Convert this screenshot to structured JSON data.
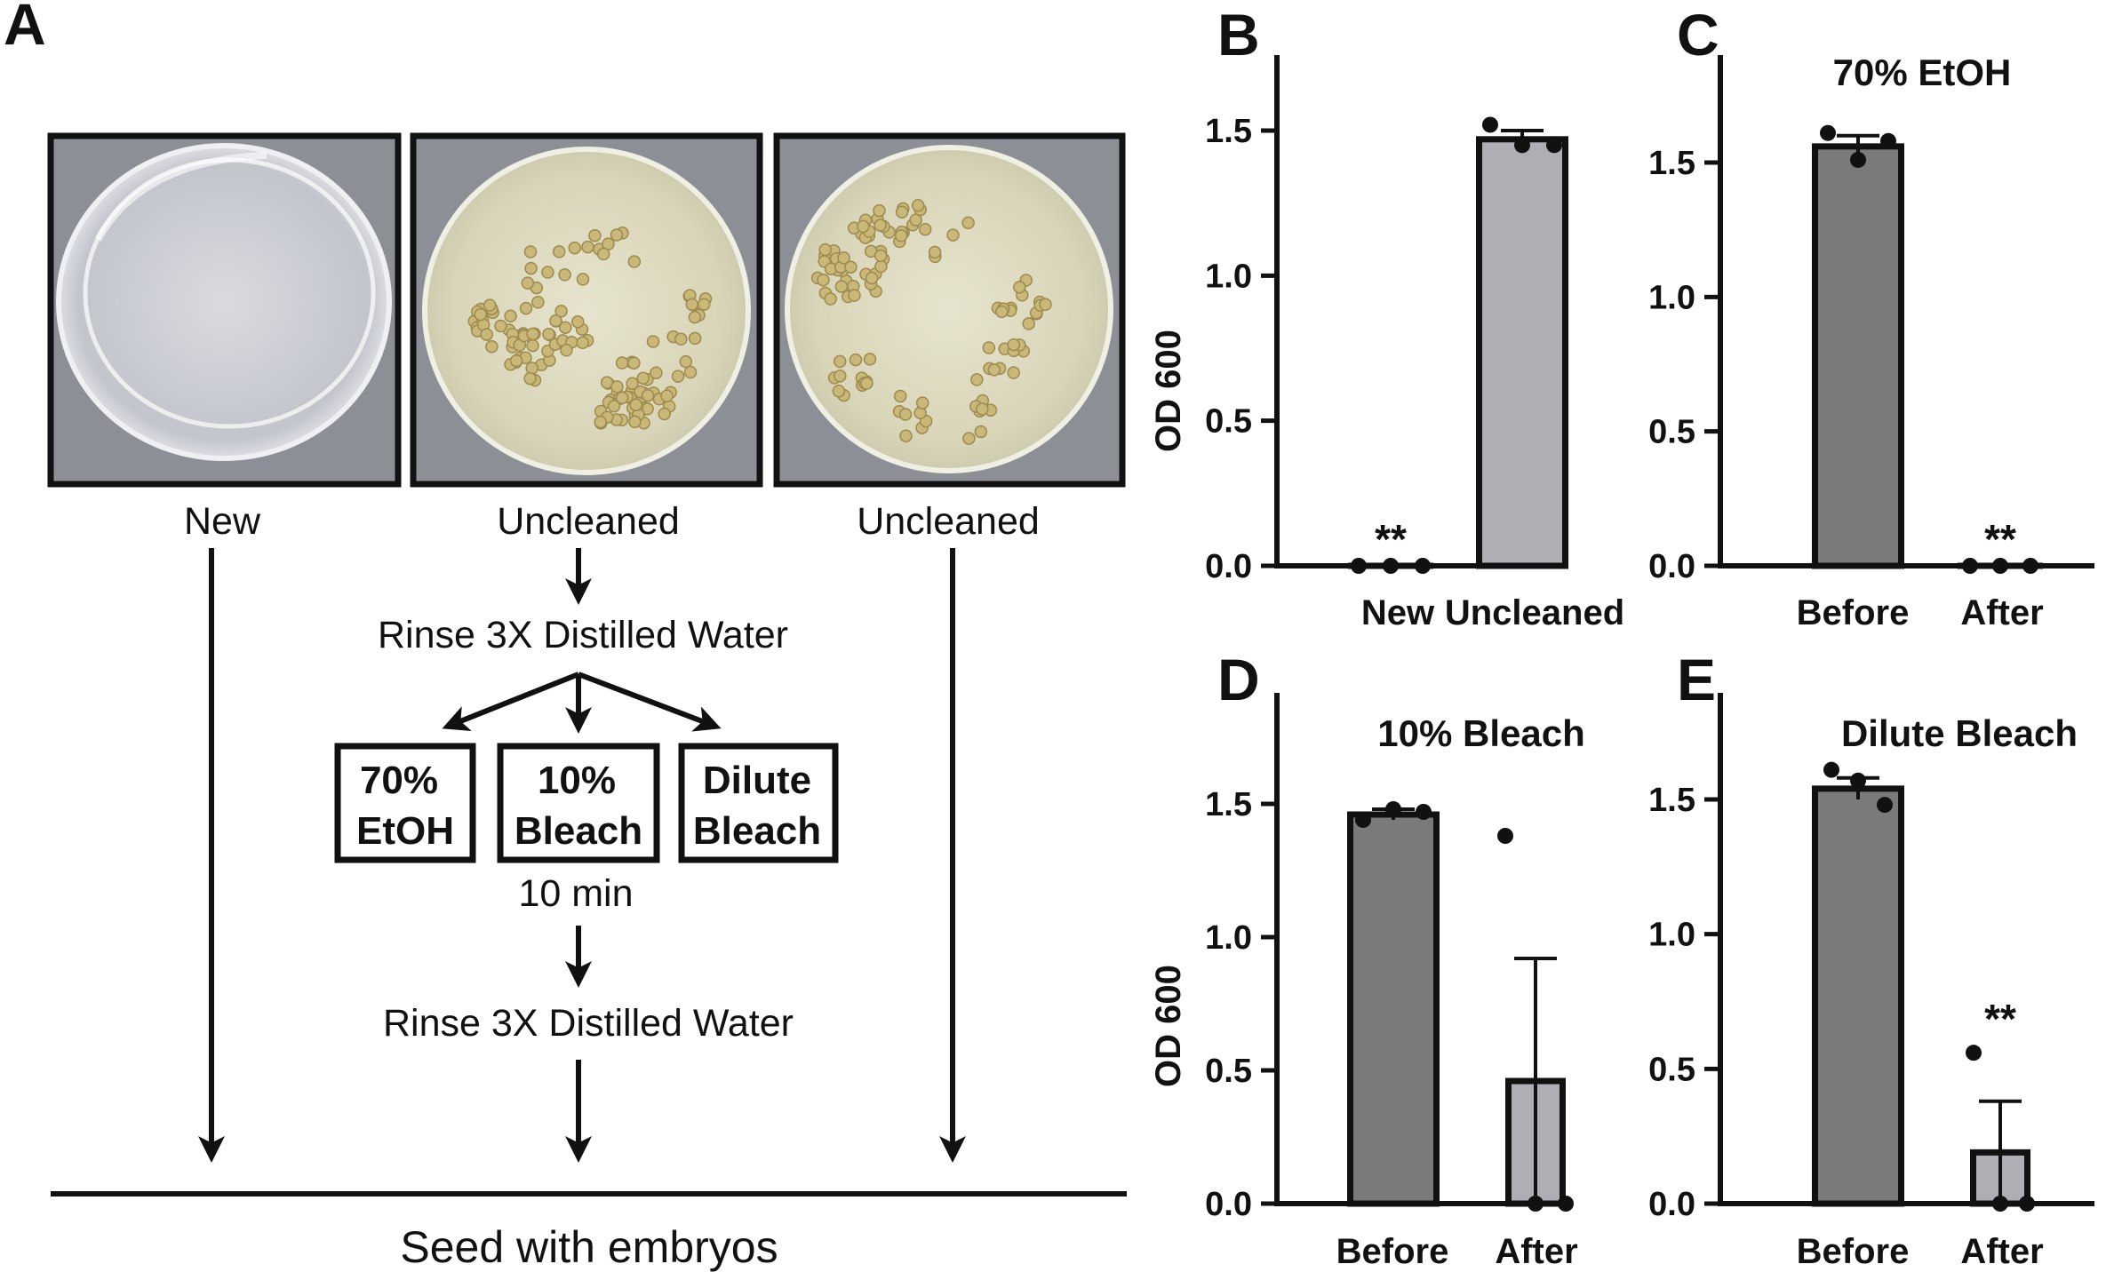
{
  "panelA": {
    "letter": "A",
    "photos": [
      {
        "label": "New",
        "kind": "empty"
      },
      {
        "label": "Uncleaned",
        "kind": "embryos-a"
      },
      {
        "label": "Uncleaned",
        "kind": "embryos-b"
      }
    ],
    "step1": "Rinse 3X Distilled Water",
    "treatments": [
      {
        "line1": "70%",
        "line2": "EtOH"
      },
      {
        "line1": "10%",
        "line2": "Bleach"
      },
      {
        "line1": "Dilute",
        "line2": "Bleach"
      }
    ],
    "duration": "10 min",
    "step2": "Rinse 3X Distilled Water",
    "final": "Seed with embryos"
  },
  "chart_data": [
    {
      "letter": "B",
      "type": "bar",
      "title": "",
      "ylabel": "OD 600",
      "ylim": [
        0,
        1.75
      ],
      "yticks": [
        "0.0",
        "0.5",
        "1.0",
        "1.5"
      ],
      "categories": [
        "New",
        "Uncleaned"
      ],
      "values": [
        0.0,
        1.47
      ],
      "errors": [
        0.0,
        0.03
      ],
      "points": [
        [
          0.0,
          0.0,
          0.0
        ],
        [
          1.52,
          1.45,
          1.45
        ]
      ],
      "significance": [
        "**",
        ""
      ],
      "bar_colors": [
        "#7a7a7a",
        "#aeaeb4"
      ]
    },
    {
      "letter": "C",
      "type": "bar",
      "title": "70% EtOH",
      "ylabel": "",
      "ylim": [
        0,
        1.75
      ],
      "yticks": [
        "0.0",
        "0.5",
        "1.0",
        "1.5"
      ],
      "categories": [
        "Before",
        "After"
      ],
      "values": [
        1.56,
        0.0
      ],
      "errors": [
        0.04,
        0.0
      ],
      "points": [
        [
          1.61,
          1.51,
          1.58
        ],
        [
          0.0,
          0.0,
          0.0
        ]
      ],
      "significance": [
        "",
        "**"
      ],
      "bar_colors": [
        "#7a7a7a",
        "#aeaeb4"
      ]
    },
    {
      "letter": "D",
      "type": "bar",
      "title": "10% Bleach",
      "ylabel": "OD 600",
      "ylim": [
        0,
        1.75
      ],
      "yticks": [
        "0.0",
        "0.5",
        "1.0",
        "1.5"
      ],
      "categories": [
        "Before",
        "After"
      ],
      "values": [
        1.46,
        0.46
      ],
      "errors": [
        0.02,
        0.46
      ],
      "points": [
        [
          1.44,
          1.48,
          1.47
        ],
        [
          1.38,
          0.0,
          0.0
        ]
      ],
      "significance": [
        "",
        ""
      ],
      "bar_colors": [
        "#7a7a7a",
        "#aeaeb4"
      ]
    },
    {
      "letter": "E",
      "type": "bar",
      "title": "Dilute Bleach",
      "ylabel": "",
      "ylim": [
        0,
        1.75
      ],
      "yticks": [
        "0.0",
        "0.5",
        "1.0",
        "1.5"
      ],
      "categories": [
        "Before",
        "After"
      ],
      "values": [
        1.54,
        0.19
      ],
      "errors": [
        0.04,
        0.19
      ],
      "points": [
        [
          1.61,
          1.57,
          1.48
        ],
        [
          0.56,
          0.0,
          0.0
        ]
      ],
      "significance": [
        "",
        "**"
      ],
      "bar_colors": [
        "#7a7a7a",
        "#aeaeb4"
      ]
    }
  ]
}
